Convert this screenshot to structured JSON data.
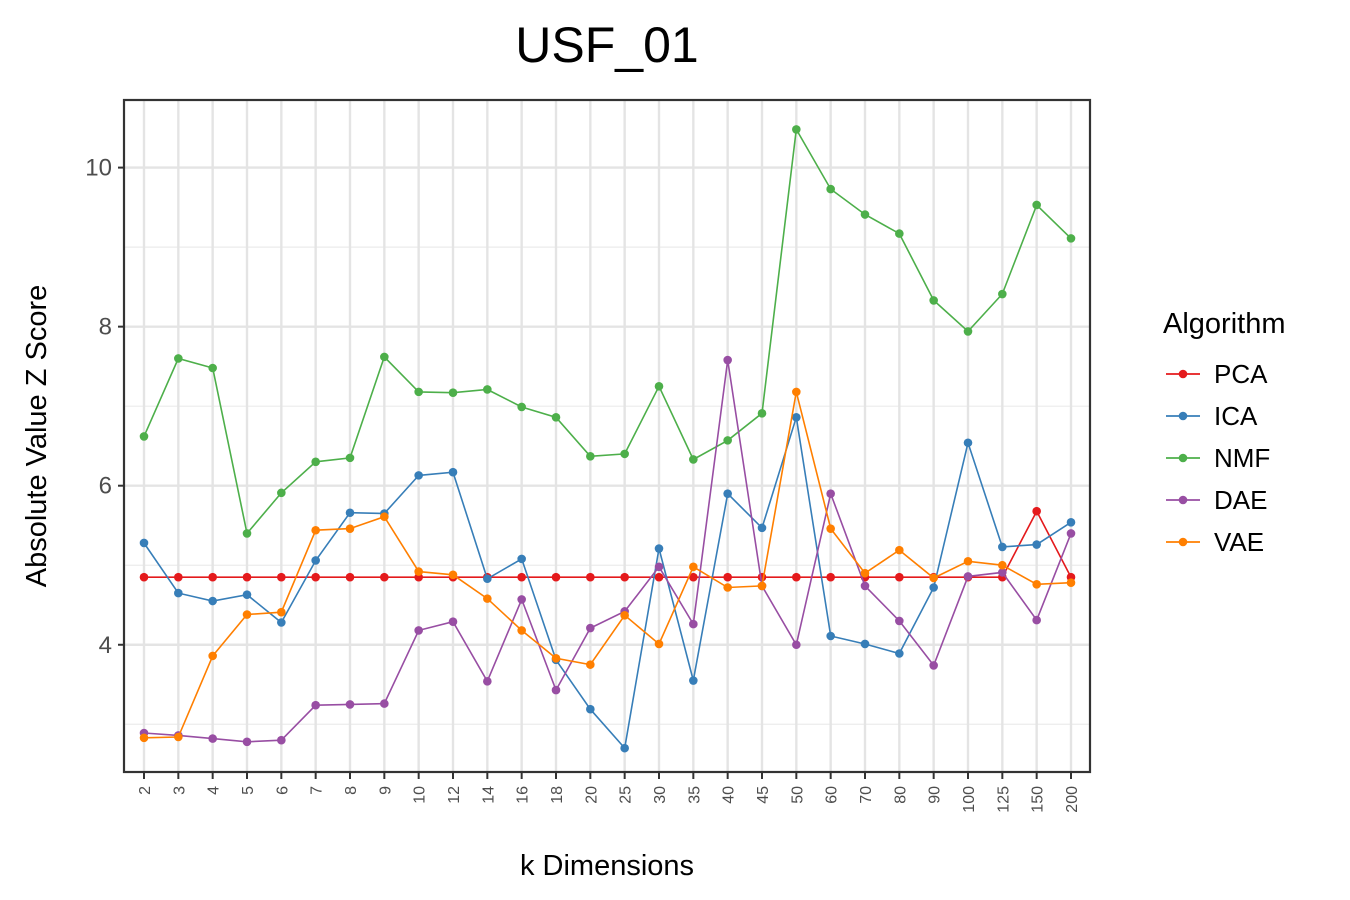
{
  "chart_data": {
    "type": "line",
    "title": "USF_01",
    "xlabel": "k Dimensions",
    "ylabel": "Absolute Value Z Score",
    "categories": [
      "2",
      "3",
      "4",
      "5",
      "6",
      "7",
      "8",
      "9",
      "10",
      "12",
      "14",
      "16",
      "18",
      "20",
      "25",
      "30",
      "35",
      "40",
      "45",
      "50",
      "60",
      "70",
      "80",
      "90",
      "100",
      "125",
      "150",
      "200"
    ],
    "yticks": [
      4,
      6,
      8,
      10
    ],
    "ylim": [
      2.4,
      10.85
    ],
    "grid": true,
    "legend": {
      "title": "Algorithm",
      "placement": "right"
    },
    "series": [
      {
        "name": "PCA",
        "color": "#e41a1c",
        "values": [
          4.85,
          4.85,
          4.85,
          4.85,
          4.85,
          4.85,
          4.85,
          4.85,
          4.85,
          4.85,
          4.85,
          4.85,
          4.85,
          4.85,
          4.85,
          4.85,
          4.85,
          4.85,
          4.85,
          4.85,
          4.85,
          4.85,
          4.85,
          4.85,
          4.85,
          4.85,
          5.68,
          4.85
        ]
      },
      {
        "name": "ICA",
        "color": "#377eb8",
        "values": [
          5.28,
          4.65,
          4.55,
          4.63,
          4.28,
          5.06,
          5.66,
          5.65,
          6.13,
          6.17,
          4.83,
          5.08,
          3.81,
          3.19,
          2.7,
          5.21,
          3.55,
          5.9,
          5.47,
          6.86,
          4.11,
          4.01,
          3.89,
          4.72,
          6.54,
          5.23,
          5.26,
          5.54
        ]
      },
      {
        "name": "NMF",
        "color": "#4daf4a",
        "values": [
          6.62,
          7.6,
          7.48,
          5.4,
          5.91,
          6.3,
          6.35,
          7.62,
          7.18,
          7.17,
          7.21,
          6.99,
          6.86,
          6.37,
          6.4,
          7.25,
          6.33,
          6.57,
          6.91,
          10.48,
          9.73,
          9.41,
          9.17,
          8.33,
          7.94,
          8.41,
          9.53,
          9.11
        ]
      },
      {
        "name": "DAE",
        "color": "#984ea3",
        "values": [
          2.89,
          2.86,
          2.82,
          2.78,
          2.8,
          3.24,
          3.25,
          3.26,
          4.18,
          4.29,
          3.54,
          4.57,
          3.43,
          4.21,
          4.42,
          4.98,
          4.26,
          7.58,
          4.74,
          4.0,
          5.9,
          4.74,
          4.3,
          3.74,
          4.86,
          4.91,
          4.31,
          5.4
        ]
      },
      {
        "name": "VAE",
        "color": "#ff7f00",
        "values": [
          2.83,
          2.84,
          3.86,
          4.38,
          4.41,
          5.44,
          5.46,
          5.61,
          4.92,
          4.88,
          4.58,
          4.18,
          3.83,
          3.75,
          4.37,
          4.01,
          4.98,
          4.72,
          4.74,
          7.18,
          5.46,
          4.9,
          5.19,
          4.84,
          5.05,
          5.0,
          4.76,
          4.78
        ]
      }
    ]
  }
}
